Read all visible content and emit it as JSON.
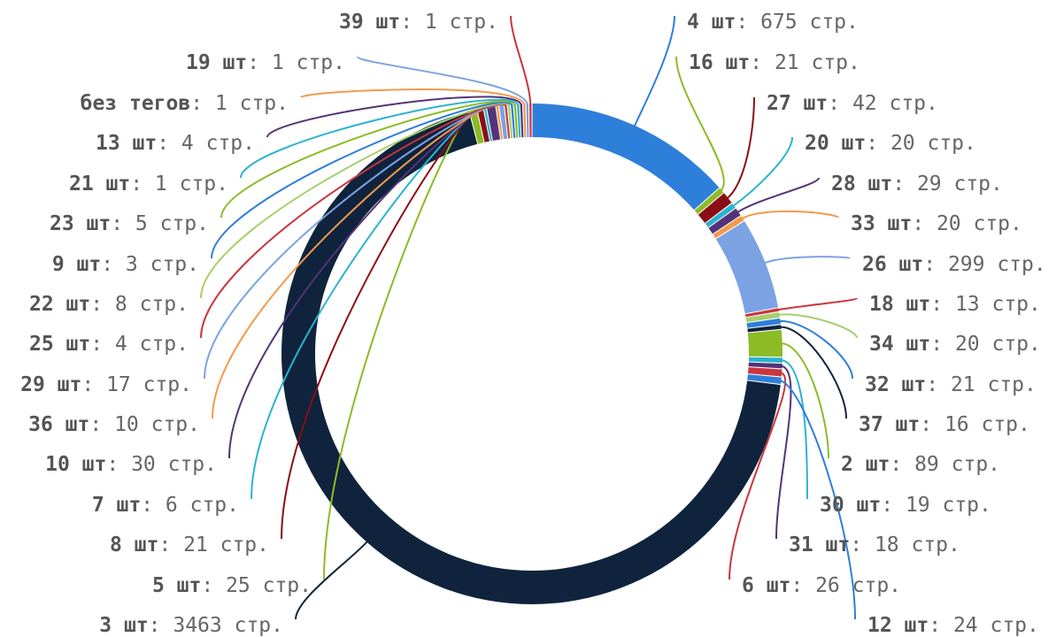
{
  "chart_data": {
    "type": "pie",
    "style": "donut",
    "title": "",
    "label_separator": ": ",
    "slices": [
      {
        "label": "4 шт",
        "value": 675,
        "value_text": "675 стр.",
        "color": "#2e7fd9"
      },
      {
        "label": "16 шт",
        "value": 21,
        "value_text": "21 стр.",
        "color": "#8cbb26"
      },
      {
        "label": "27 шт",
        "value": 42,
        "value_text": "42 стр.",
        "color": "#8b0e16"
      },
      {
        "label": "20 шт",
        "value": 20,
        "value_text": "20 стр.",
        "color": "#2bb3d0"
      },
      {
        "label": "28 шт",
        "value": 29,
        "value_text": "29 стр.",
        "color": "#533478"
      },
      {
        "label": "33 шт",
        "value": 20,
        "value_text": "20 стр.",
        "color": "#f29a4a"
      },
      {
        "label": "26 шт",
        "value": 299,
        "value_text": "299 стр.",
        "color": "#7ba3e3"
      },
      {
        "label": "18 шт",
        "value": 13,
        "value_text": "13 стр.",
        "color": "#c9363e"
      },
      {
        "label": "34 шт",
        "value": 20,
        "value_text": "20 стр.",
        "color": "#a8cf6c"
      },
      {
        "label": "32 шт",
        "value": 21,
        "value_text": "21 стр.",
        "color": "#2e7fd9"
      },
      {
        "label": "37 шт",
        "value": 16,
        "value_text": "16 стр.",
        "color": "#10233d"
      },
      {
        "label": "2 шт",
        "value": 89,
        "value_text": "89 стр.",
        "color": "#8cbb26"
      },
      {
        "label": "30 шт",
        "value": 19,
        "value_text": "19 стр.",
        "color": "#2bb3d0"
      },
      {
        "label": "31 шт",
        "value": 18,
        "value_text": "18 стр.",
        "color": "#533478"
      },
      {
        "label": "6 шт",
        "value": 26,
        "value_text": "26 стр.",
        "color": "#c9363e"
      },
      {
        "label": "12 шт",
        "value": 24,
        "value_text": "24 стр.",
        "color": "#2e7fd9"
      },
      {
        "label": "3 шт",
        "value": 3463,
        "value_text": "3463 стр.",
        "color": "#10233d"
      },
      {
        "label": "5 шт",
        "value": 25,
        "value_text": "25 стр.",
        "color": "#8cbb26"
      },
      {
        "label": "8 шт",
        "value": 21,
        "value_text": "21 стр.",
        "color": "#8b0e16"
      },
      {
        "label": "7 шт",
        "value": 6,
        "value_text": "6 стр.",
        "color": "#2bb3d0"
      },
      {
        "label": "10 шт",
        "value": 30,
        "value_text": "30 стр.",
        "color": "#533478"
      },
      {
        "label": "36 шт",
        "value": 10,
        "value_text": "10 стр.",
        "color": "#f29a4a"
      },
      {
        "label": "29 шт",
        "value": 17,
        "value_text": "17 стр.",
        "color": "#7ba3e3"
      },
      {
        "label": "25 шт",
        "value": 4,
        "value_text": "4 стр.",
        "color": "#c9363e"
      },
      {
        "label": "22 шт",
        "value": 8,
        "value_text": "8 стр.",
        "color": "#a8cf6c"
      },
      {
        "label": "9 шт",
        "value": 3,
        "value_text": "3 стр.",
        "color": "#2e7fd9"
      },
      {
        "label": "23 шт",
        "value": 5,
        "value_text": "5 стр.",
        "color": "#8cbb26"
      },
      {
        "label": "21 шт",
        "value": 1,
        "value_text": "1 стр.",
        "color": "#2bb3d0"
      },
      {
        "label": "13 шт",
        "value": 4,
        "value_text": "4 стр.",
        "color": "#533478"
      },
      {
        "label": "без тегов",
        "value": 1,
        "value_text": "1 стр.",
        "color": "#f29a4a"
      },
      {
        "label": "19 шт",
        "value": 1,
        "value_text": "1 стр.",
        "color": "#7ba3e3"
      },
      {
        "label": "39 шт",
        "value": 1,
        "value_text": "1 стр.",
        "color": "#c9363e"
      }
    ]
  }
}
